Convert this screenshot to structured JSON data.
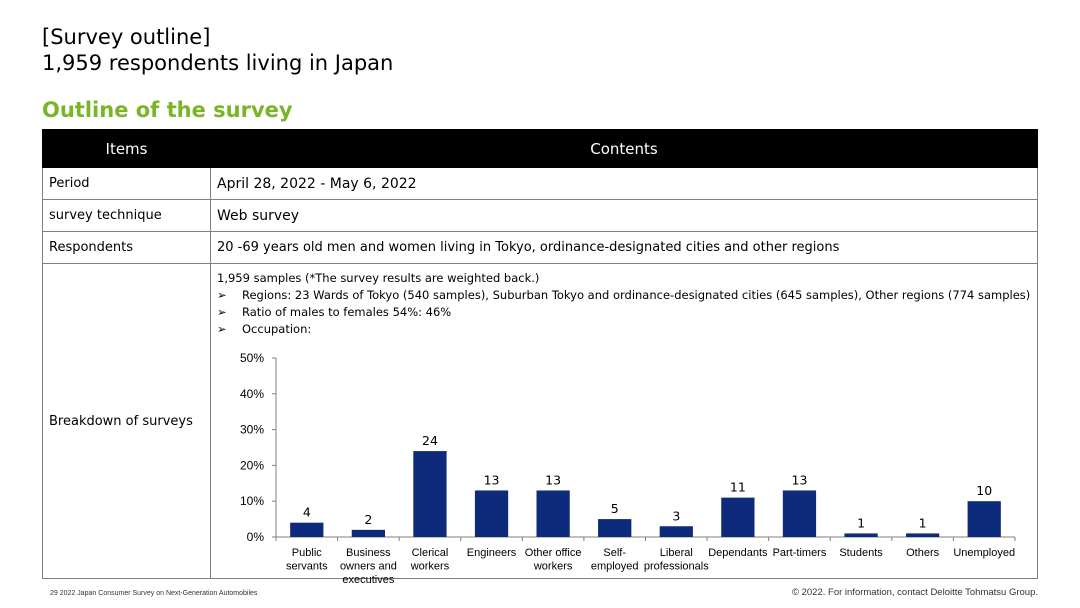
{
  "header": {
    "title_line1": "[Survey outline]",
    "title_line2": "1,959 respondents living in Japan",
    "subtitle": "Outline of the survey"
  },
  "table": {
    "col_items": "Items",
    "col_contents": "Contents",
    "rows": [
      {
        "item": "Period",
        "content": "April 28, 2022 - May 6, 2022"
      },
      {
        "item": "survey technique",
        "content": "Web survey"
      },
      {
        "item": "Respondents",
        "content": "20 -69 years old men and women living in Tokyo, ordinance-designated cities and other regions"
      },
      {
        "item": "Breakdown of surveys"
      }
    ],
    "breakdown": {
      "line1": "1,959 samples (*The survey results are weighted back.)",
      "bullet_glyph": "➢",
      "bullets": [
        "Regions: 23 Wards of Tokyo (540 samples), Suburban Tokyo and ordinance-designated cities (645 samples), Other regions (774 samples)",
        "Ratio of males to females  54%: 46%",
        "Occupation:"
      ]
    }
  },
  "chart_data": {
    "type": "bar",
    "categories": [
      [
        "Public",
        "servants"
      ],
      [
        "Business",
        "owners and",
        "executives"
      ],
      [
        "Clerical",
        "workers"
      ],
      [
        "Engineers"
      ],
      [
        "Other office",
        "workers"
      ],
      [
        "Self-",
        "employed"
      ],
      [
        "Liberal",
        "professionals"
      ],
      [
        "Dependants"
      ],
      [
        "Part-timers"
      ],
      [
        "Students"
      ],
      [
        "Others"
      ],
      [
        "Unemployed"
      ]
    ],
    "values": [
      4,
      2,
      24,
      13,
      13,
      5,
      3,
      11,
      13,
      1,
      1,
      10
    ],
    "yticks": [
      "0%",
      "10%",
      "20%",
      "30%",
      "40%",
      "50%"
    ],
    "ylim": [
      0,
      50
    ],
    "bar_color": "#0e2a7a"
  },
  "footer": {
    "left": "29   2022 Japan Consumer Survey on Next-Generation Automobiles",
    "right": "© 2022. For information, contact Deloitte Tohmatsu Group."
  }
}
